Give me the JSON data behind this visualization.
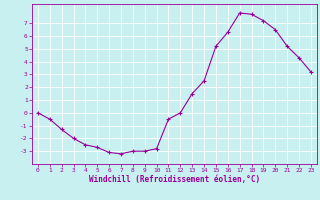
{
  "x": [
    0,
    1,
    2,
    3,
    4,
    5,
    6,
    7,
    8,
    9,
    10,
    11,
    12,
    13,
    14,
    15,
    16,
    17,
    18,
    19,
    20,
    21,
    22,
    23
  ],
  "y": [
    0,
    -0.5,
    -1.3,
    -2.0,
    -2.5,
    -2.7,
    -3.1,
    -3.2,
    -3.0,
    -3.0,
    -2.8,
    -0.5,
    0.0,
    1.5,
    2.5,
    5.2,
    6.3,
    7.8,
    7.7,
    7.2,
    6.5,
    5.2,
    4.3,
    3.2
  ],
  "line_color": "#990099",
  "marker": "+",
  "marker_size": 3,
  "bg_color": "#c8f0f0",
  "grid_color": "#ffffff",
  "xlabel": "Windchill (Refroidissement éolien,°C)",
  "ylabel": "",
  "xlim": [
    -0.5,
    23.5
  ],
  "ylim": [
    -4.0,
    8.5
  ],
  "yticks": [
    -3,
    -2,
    -1,
    0,
    1,
    2,
    3,
    4,
    5,
    6,
    7
  ],
  "xticks": [
    0,
    1,
    2,
    3,
    4,
    5,
    6,
    7,
    8,
    9,
    10,
    11,
    12,
    13,
    14,
    15,
    16,
    17,
    18,
    19,
    20,
    21,
    22,
    23
  ],
  "tick_color": "#990099",
  "label_color": "#990099",
  "axis_color": "#990099",
  "tick_fontsize": 4.5,
  "label_fontsize": 5.5
}
